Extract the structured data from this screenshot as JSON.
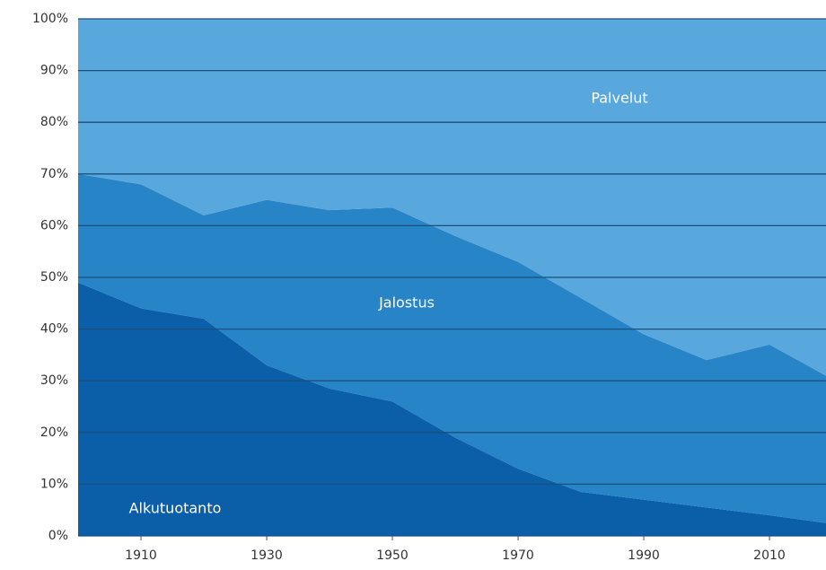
{
  "chart_data": {
    "type": "stacked_area",
    "x": [
      1900,
      1910,
      1920,
      1930,
      1940,
      1950,
      1960,
      1970,
      1980,
      1990,
      2000,
      2010,
      2019
    ],
    "series": [
      {
        "name": "Alkutuotanto",
        "color": "#0b5ea8",
        "values": [
          49,
          44,
          42,
          33,
          28.5,
          26,
          19,
          13,
          8.5,
          7,
          5.5,
          4,
          2.5
        ]
      },
      {
        "name": "Jalostus",
        "color": "#2784c7",
        "values": [
          21,
          24,
          20,
          32,
          34.5,
          37.5,
          39,
          40,
          37.5,
          32,
          28.5,
          33,
          28.5
        ]
      },
      {
        "name": "Palvelut",
        "color": "#58a7dd",
        "values": [
          30,
          32,
          38,
          35,
          37,
          36.5,
          42,
          47,
          54,
          61,
          66,
          63,
          69
        ]
      }
    ],
    "xlim": [
      1900,
      2019
    ],
    "xticks": [
      1910,
      1930,
      1950,
      1970,
      1990,
      2010
    ],
    "ylim": [
      0,
      100
    ],
    "yticks": [
      {
        "value": 0,
        "label": "0%"
      },
      {
        "value": 10,
        "label": "10%"
      },
      {
        "value": 20,
        "label": "20%"
      },
      {
        "value": 30,
        "label": "30%"
      },
      {
        "value": 40,
        "label": "40%"
      },
      {
        "value": 50,
        "label": "50%"
      },
      {
        "value": 60,
        "label": "60%"
      },
      {
        "value": 70,
        "label": "70%"
      },
      {
        "value": 80,
        "label": "80%"
      },
      {
        "value": 90,
        "label": "90%"
      },
      {
        "value": 100,
        "label": "100%"
      }
    ],
    "grid": true
  }
}
